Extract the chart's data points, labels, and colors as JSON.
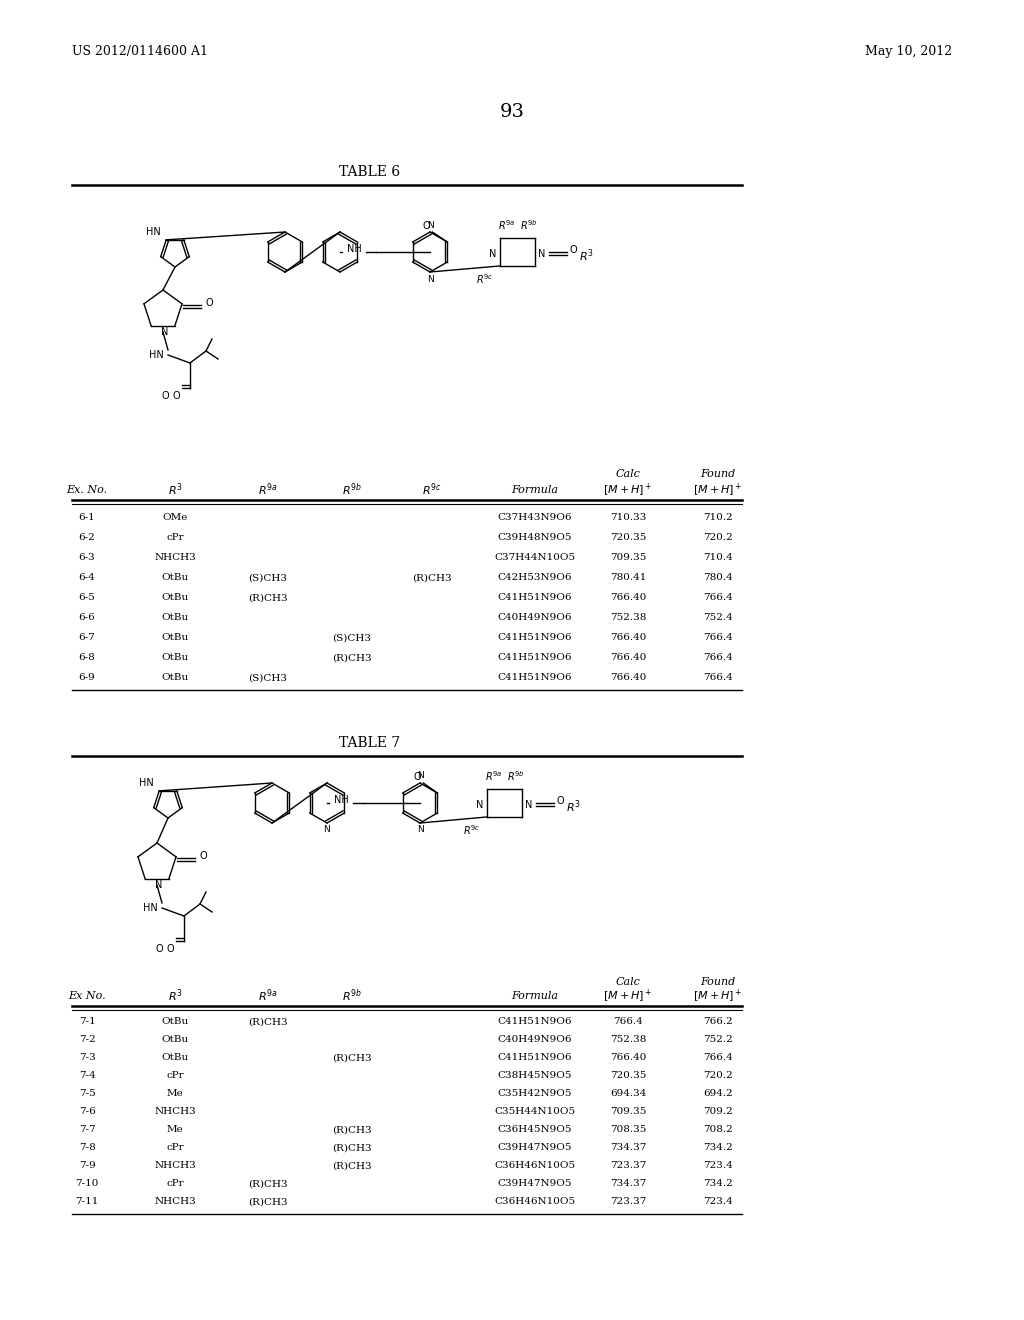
{
  "page_header_left": "US 2012/0114600 A1",
  "page_header_right": "May 10, 2012",
  "page_number": "93",
  "table6_title": "TABLE 6",
  "table7_title": "TABLE 7",
  "table6_rows": [
    [
      "6-1",
      "OMe",
      "",
      "",
      "",
      "C37H43N9O6",
      "710.33",
      "710.2"
    ],
    [
      "6-2",
      "cPr",
      "",
      "",
      "",
      "C39H48N9O5",
      "720.35",
      "720.2"
    ],
    [
      "6-3",
      "NHCH3",
      "",
      "",
      "",
      "C37H44N10O5",
      "709.35",
      "710.4"
    ],
    [
      "6-4",
      "OtBu",
      "(S)CH3",
      "",
      "(R)CH3",
      "C42H53N9O6",
      "780.41",
      "780.4"
    ],
    [
      "6-5",
      "OtBu",
      "(R)CH3",
      "",
      "",
      "C41H51N9O6",
      "766.40",
      "766.4"
    ],
    [
      "6-6",
      "OtBu",
      "",
      "",
      "",
      "C40H49N9O6",
      "752.38",
      "752.4"
    ],
    [
      "6-7",
      "OtBu",
      "",
      "(S)CH3",
      "",
      "C41H51N9O6",
      "766.40",
      "766.4"
    ],
    [
      "6-8",
      "OtBu",
      "",
      "(R)CH3",
      "",
      "C41H51N9O6",
      "766.40",
      "766.4"
    ],
    [
      "6-9",
      "OtBu",
      "(S)CH3",
      "",
      "",
      "C41H51N9O6",
      "766.40",
      "766.4"
    ]
  ],
  "table7_rows": [
    [
      "7-1",
      "OtBu",
      "(R)CH3",
      "",
      "C41H51N9O6",
      "766.4",
      "766.2"
    ],
    [
      "7-2",
      "OtBu",
      "",
      "",
      "C40H49N9O6",
      "752.38",
      "752.2"
    ],
    [
      "7-3",
      "OtBu",
      "",
      "(R)CH3",
      "C41H51N9O6",
      "766.40",
      "766.4"
    ],
    [
      "7-4",
      "cPr",
      "",
      "",
      "C38H45N9O5",
      "720.35",
      "720.2"
    ],
    [
      "7-5",
      "Me",
      "",
      "",
      "C35H42N9O5",
      "694.34",
      "694.2"
    ],
    [
      "7-6",
      "NHCH3",
      "",
      "",
      "C35H44N10O5",
      "709.35",
      "709.2"
    ],
    [
      "7-7",
      "Me",
      "",
      "(R)CH3",
      "C36H45N9O5",
      "708.35",
      "708.2"
    ],
    [
      "7-8",
      "cPr",
      "",
      "(R)CH3",
      "C39H47N9O5",
      "734.37",
      "734.2"
    ],
    [
      "7-9",
      "NHCH3",
      "",
      "(R)CH3",
      "C36H46N10O5",
      "723.37",
      "723.4"
    ],
    [
      "7-10",
      "cPr",
      "(R)CH3",
      "",
      "C39H47N9O5",
      "734.37",
      "734.2"
    ],
    [
      "7-11",
      "NHCH3",
      "(R)CH3",
      "",
      "C36H46N10O5",
      "723.37",
      "723.4"
    ]
  ],
  "bg_color": "#ffffff",
  "text_color": "#000000",
  "line_color": "#000000",
  "font_size_body": 8,
  "font_size_title": 10
}
